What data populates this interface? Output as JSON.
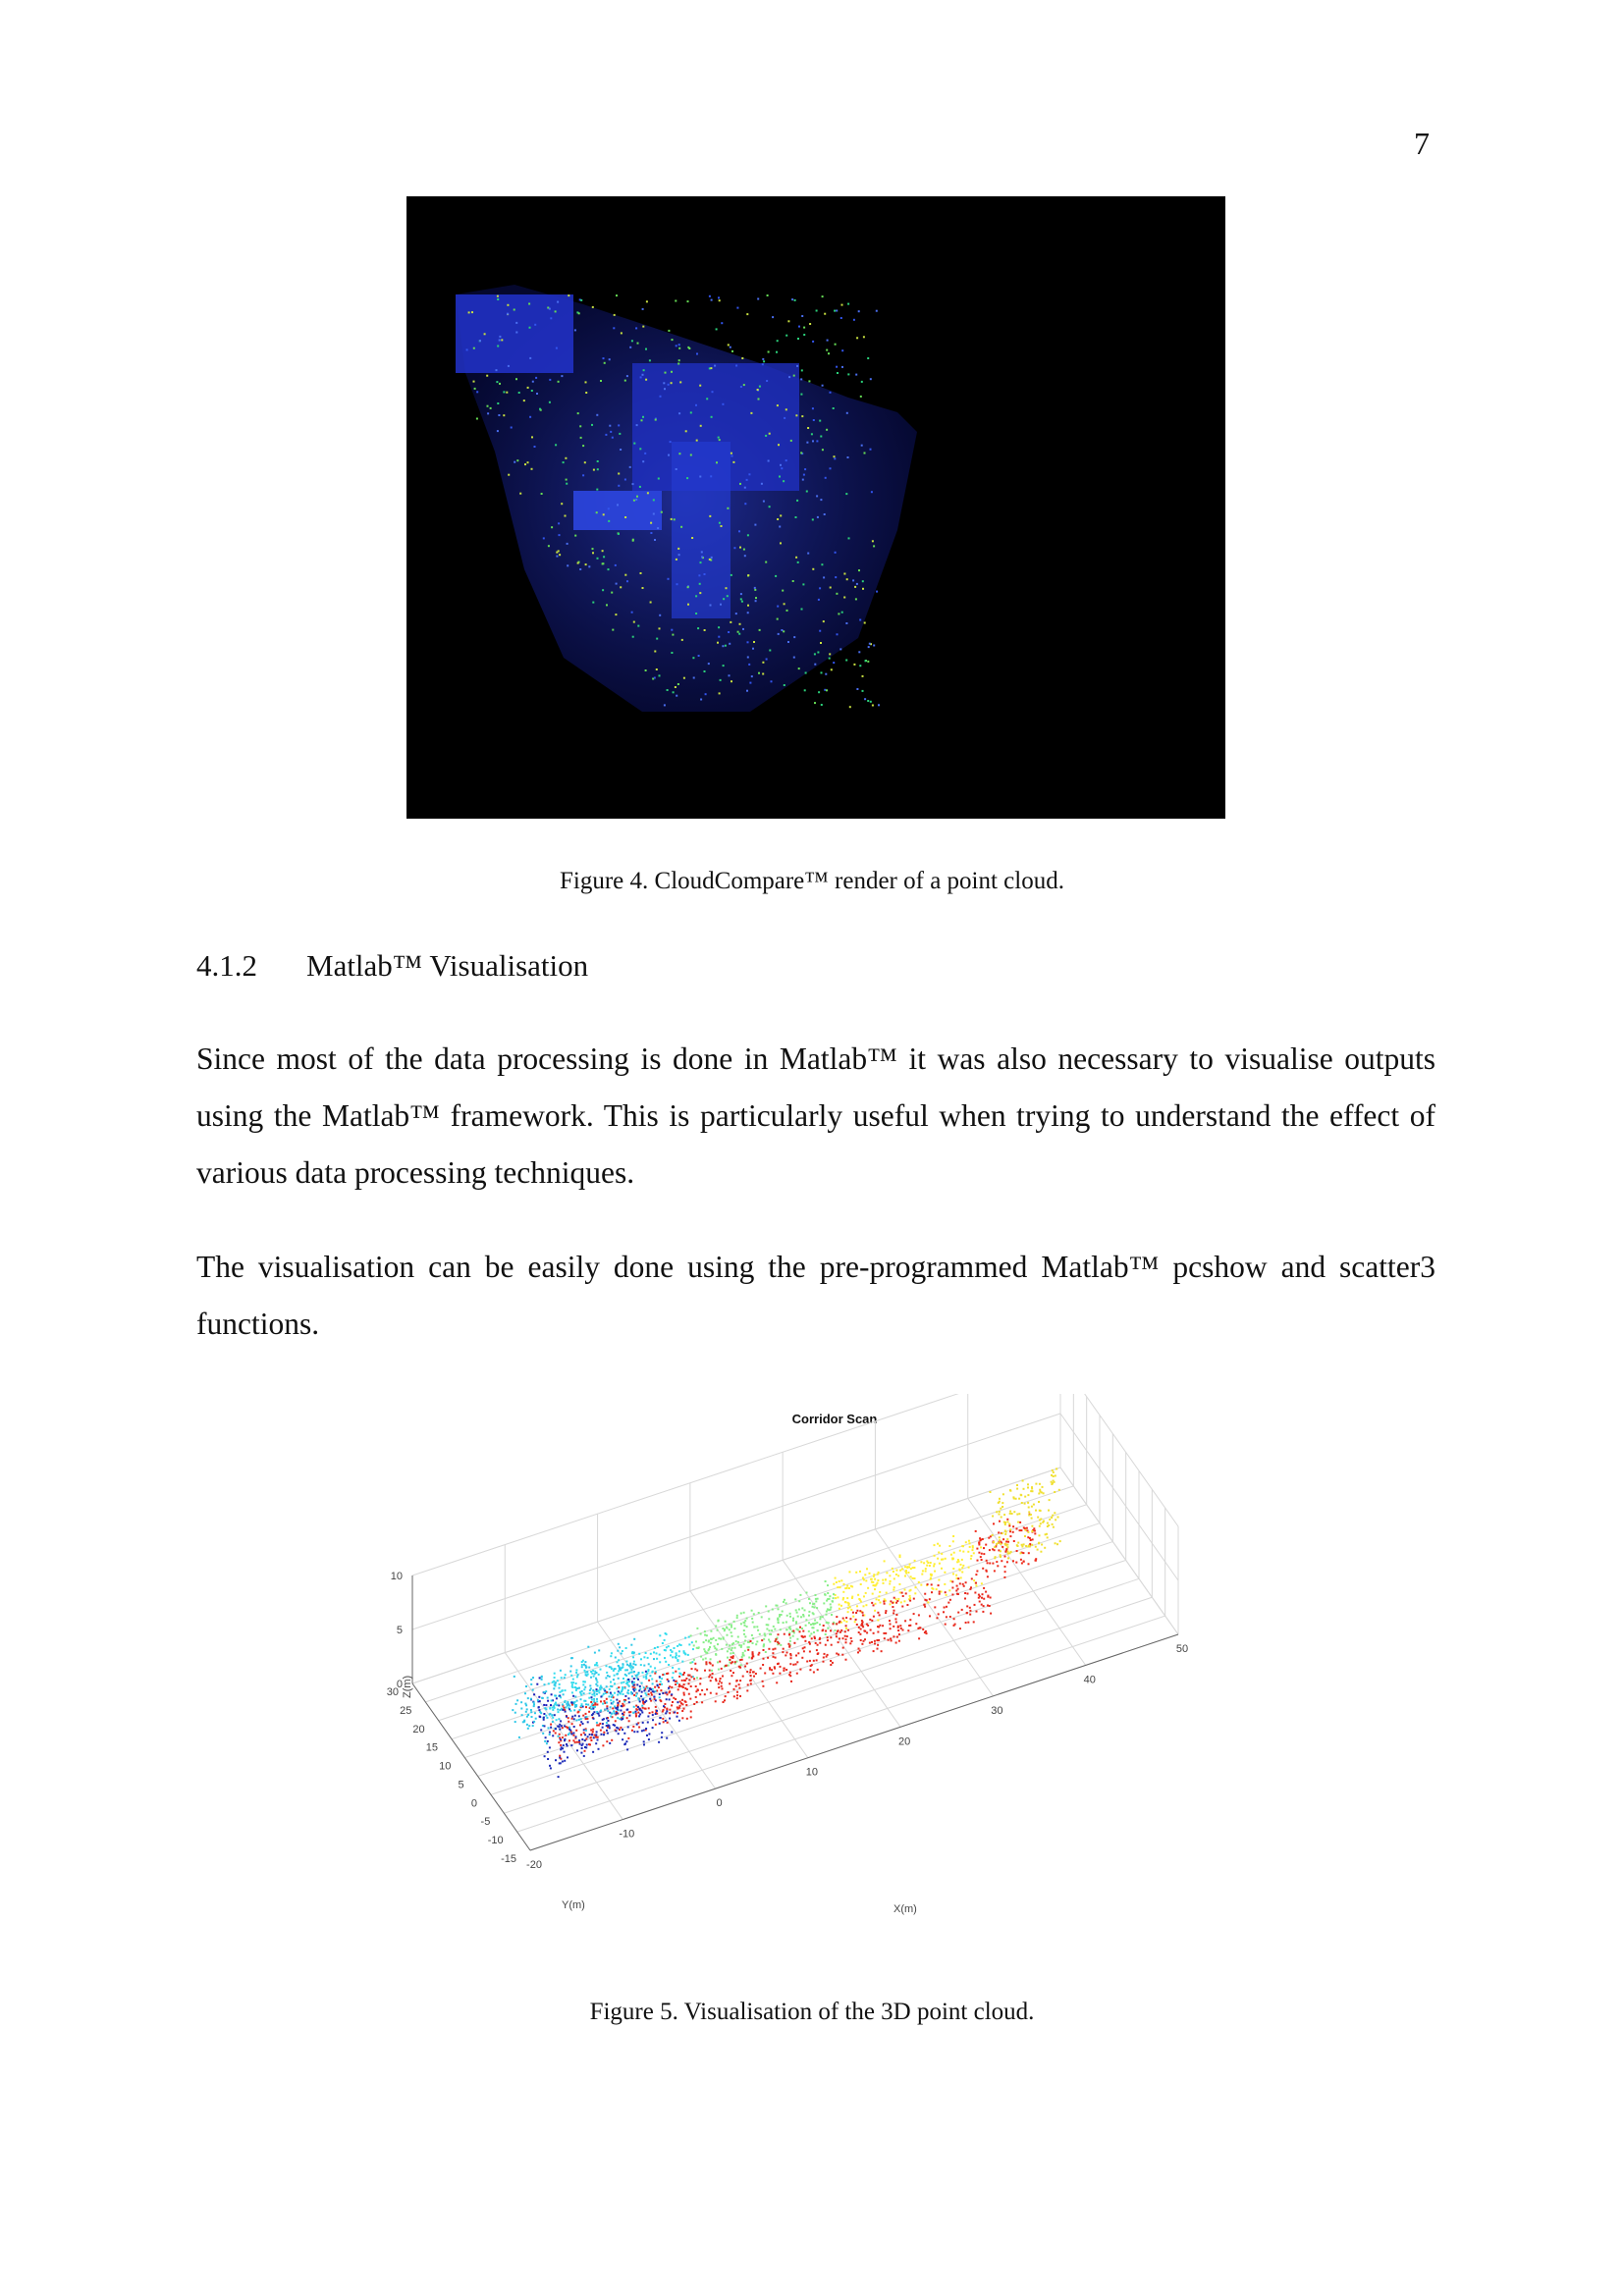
{
  "page": {
    "number": "7"
  },
  "figure4": {
    "caption": "Figure 4. CloudCompare™ render of a point cloud."
  },
  "section": {
    "number": "4.1.2",
    "title": "Matlab™ Visualisation"
  },
  "paragraphs": [
    "Since most of the data processing is done in Matlab™ it was also necessary to visualise outputs using the Matlab™ framework. This is particularly useful when trying to understand the effect of various data processing techniques.",
    "The visualisation can be easily done using the pre-programmed Matlab™ pcshow and scatter3 functions."
  ],
  "figure5": {
    "caption": "Figure 5. Visualisation of the 3D point cloud.",
    "chart_data": {
      "type": "scatter",
      "title": "Corridor Scan",
      "xlabel": "X(m)",
      "ylabel": "Y(m)",
      "zlabel": "Z(m)",
      "x_ticks": [
        "-20",
        "-10",
        "0",
        "10",
        "20",
        "30",
        "40",
        "50"
      ],
      "y_ticks": [
        "-15",
        "-10",
        "-5",
        "0",
        "5",
        "10",
        "15",
        "20",
        "25",
        "30"
      ],
      "z_ticks": [
        "0",
        "5",
        "10"
      ],
      "xlim": [
        -20,
        50
      ],
      "ylim": [
        -15,
        30
      ],
      "zlim": [
        0,
        10
      ],
      "grid": true,
      "colormap": [
        "#1a1ab8",
        "#33ddee",
        "#88ee88",
        "#ffee33",
        "#ee2a1a"
      ]
    }
  }
}
